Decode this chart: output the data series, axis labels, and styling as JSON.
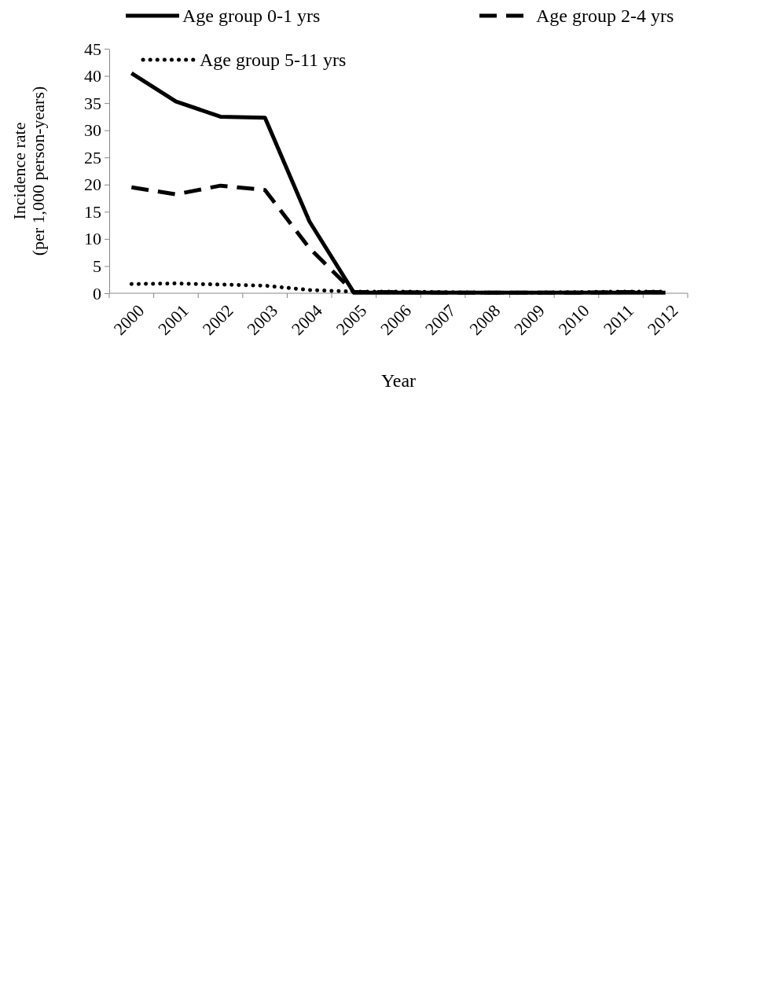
{
  "chart_data": {
    "type": "line",
    "xlabel": "Year",
    "ylabel": "Incidence rate (per 1,000 person-years)",
    "categories": [
      "2000",
      "2001",
      "2002",
      "2003",
      "2004",
      "2005",
      "2006",
      "2007",
      "2008",
      "2009",
      "2010",
      "2011",
      "2012"
    ],
    "series": [
      {
        "name": "Age group 0-1 yrs",
        "color": "#000000",
        "line_style": "solid",
        "values": [
          40.5,
          35.3,
          32.5,
          32.3,
          13.2,
          0.1,
          0.1,
          0.1,
          0.1,
          0.1,
          0.1,
          0.1,
          0.1
        ]
      },
      {
        "name": "Age group 2-4 yrs",
        "color": "#000000",
        "line_style": "dashed",
        "values": [
          19.5,
          18.2,
          19.8,
          19.0,
          8.3,
          0.2,
          0.2,
          0.1,
          0.1,
          0.1,
          0.1,
          0.2,
          0.2
        ]
      },
      {
        "name": "Age group 5-11 yrs",
        "color": "#000000",
        "line_style": "dotted",
        "values": [
          1.7,
          1.8,
          1.6,
          1.4,
          0.6,
          0.3,
          0.3,
          0.2,
          0.1,
          0.1,
          0.2,
          0.3,
          0.3
        ]
      }
    ],
    "ylim": [
      0,
      45
    ],
    "yticks": [
      0,
      5,
      10,
      15,
      20,
      25,
      30,
      35,
      40,
      45
    ],
    "grid": false,
    "legend": "top",
    "marker": "none"
  }
}
